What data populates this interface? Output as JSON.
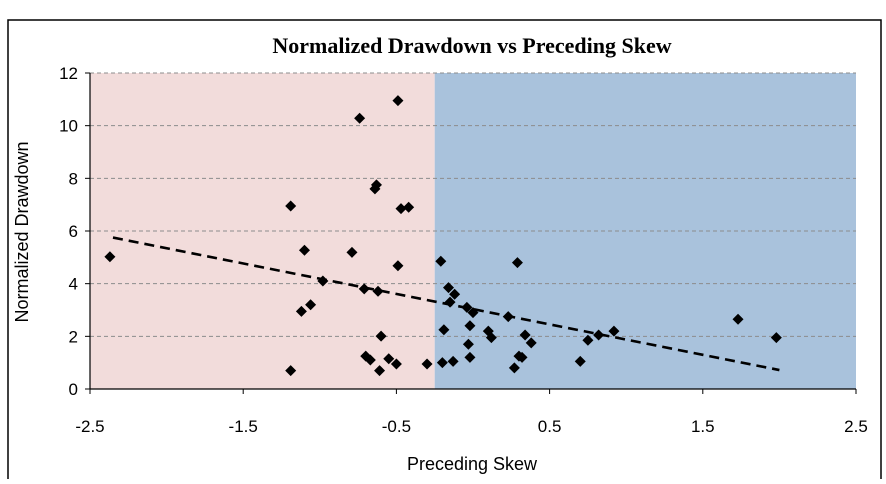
{
  "chart_data": {
    "type": "scatter",
    "title": "Normalized Drawdown vs Preceding Skew",
    "xlabel": "Preceding Skew",
    "ylabel": "Normalized Drawdown",
    "xlim": [
      -2.5,
      2.5
    ],
    "ylim": [
      0,
      12
    ],
    "xticks": [
      "-2.5",
      "-1.5",
      "-0.5",
      "0.5",
      "1.5",
      "2.5"
    ],
    "yticks": [
      "0",
      "2",
      "4",
      "6",
      "8",
      "10",
      "12"
    ],
    "grid": "horizontal dashed",
    "legend": "none",
    "regions": [
      {
        "x_from": -2.5,
        "x_to": -0.25,
        "color": "#F2DCDB"
      },
      {
        "x_from": -0.25,
        "x_to": 2.5,
        "color": "#A9C2DC"
      }
    ],
    "trendline": {
      "style": "dashed",
      "x": [
        -2.35,
        2.0
      ],
      "y": [
        5.75,
        0.72
      ]
    },
    "marker_color": "#000000",
    "points": [
      {
        "x": -2.37,
        "y": 5.02
      },
      {
        "x": -1.19,
        "y": 6.95
      },
      {
        "x": -1.1,
        "y": 5.27
      },
      {
        "x": -1.19,
        "y": 0.7
      },
      {
        "x": -1.12,
        "y": 2.95
      },
      {
        "x": -1.06,
        "y": 3.2
      },
      {
        "x": -0.98,
        "y": 4.1
      },
      {
        "x": -0.79,
        "y": 5.19
      },
      {
        "x": -0.74,
        "y": 10.28
      },
      {
        "x": -0.71,
        "y": 3.8
      },
      {
        "x": -0.7,
        "y": 1.25
      },
      {
        "x": -0.67,
        "y": 1.1
      },
      {
        "x": -0.64,
        "y": 7.6
      },
      {
        "x": -0.63,
        "y": 7.75
      },
      {
        "x": -0.62,
        "y": 3.71
      },
      {
        "x": -0.61,
        "y": 0.7
      },
      {
        "x": -0.6,
        "y": 2.01
      },
      {
        "x": -0.55,
        "y": 1.15
      },
      {
        "x": -0.5,
        "y": 0.95
      },
      {
        "x": -0.49,
        "y": 4.68
      },
      {
        "x": -0.49,
        "y": 10.95
      },
      {
        "x": -0.47,
        "y": 6.85
      },
      {
        "x": -0.42,
        "y": 6.9
      },
      {
        "x": -0.3,
        "y": 0.95
      },
      {
        "x": -0.21,
        "y": 4.85
      },
      {
        "x": -0.2,
        "y": 1.0
      },
      {
        "x": -0.19,
        "y": 2.25
      },
      {
        "x": -0.16,
        "y": 3.85
      },
      {
        "x": -0.15,
        "y": 3.3
      },
      {
        "x": -0.13,
        "y": 1.05
      },
      {
        "x": -0.12,
        "y": 3.6
      },
      {
        "x": -0.04,
        "y": 3.1
      },
      {
        "x": -0.03,
        "y": 1.7
      },
      {
        "x": -0.02,
        "y": 2.4
      },
      {
        "x": -0.02,
        "y": 1.2
      },
      {
        "x": 0.0,
        "y": 2.9
      },
      {
        "x": 0.1,
        "y": 2.2
      },
      {
        "x": 0.12,
        "y": 1.95
      },
      {
        "x": 0.23,
        "y": 2.75
      },
      {
        "x": 0.27,
        "y": 0.8
      },
      {
        "x": 0.29,
        "y": 4.8
      },
      {
        "x": 0.3,
        "y": 1.25
      },
      {
        "x": 0.32,
        "y": 1.2
      },
      {
        "x": 0.34,
        "y": 2.05
      },
      {
        "x": 0.38,
        "y": 1.75
      },
      {
        "x": 0.7,
        "y": 1.05
      },
      {
        "x": 0.75,
        "y": 1.85
      },
      {
        "x": 0.82,
        "y": 2.05
      },
      {
        "x": 0.92,
        "y": 2.2
      },
      {
        "x": 1.73,
        "y": 2.65
      },
      {
        "x": 1.98,
        "y": 1.95
      }
    ]
  }
}
